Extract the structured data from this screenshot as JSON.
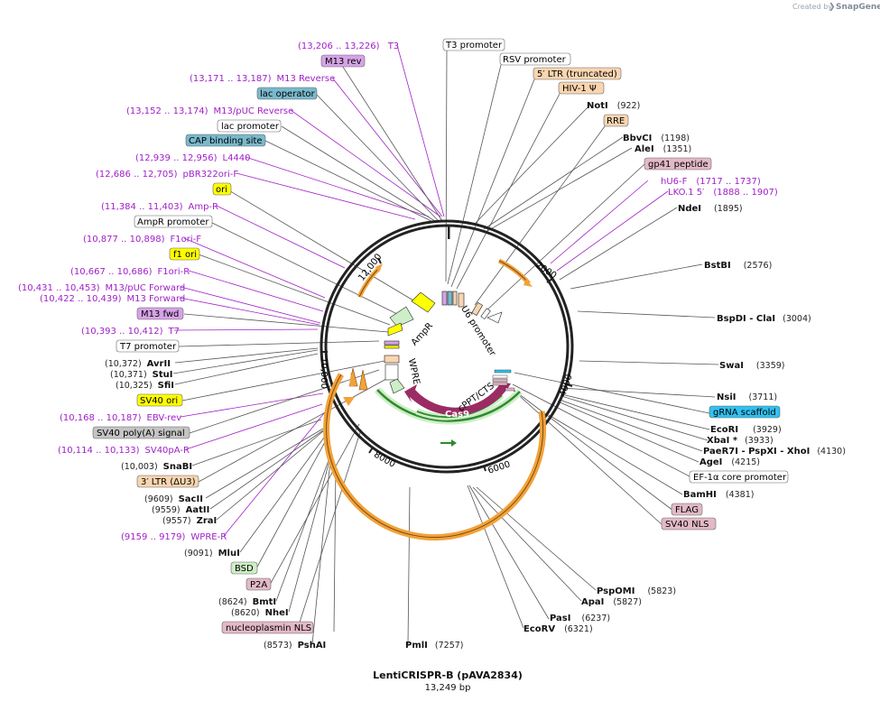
{
  "brand": {
    "created_by": "Created by",
    "name": "SnapGene"
  },
  "plasmid": {
    "name": "LentiCRISPR-B (pAVA2834)",
    "length": "13,249 bp"
  },
  "ticks": [
    "2000",
    "4000",
    "6000",
    "8000",
    "10,000",
    "12,000"
  ],
  "colors": {
    "ring": "#222222",
    "primer": "#a020c8",
    "cas9": "#9b2c63",
    "feature_orange": "#f2a23a",
    "feature_green": "#2e8b2e",
    "yellow": "#ffff00",
    "blue": "#79b9cc",
    "purple": "#d7a3e8",
    "peach": "#f9d5b0",
    "pink": "#e3b9c6",
    "grey": "#c4c4c4",
    "cyan": "#31c1f0",
    "lightgreen": "#cdeec6"
  },
  "arc_labels": {
    "u6": "U6 promoter",
    "ampr": "AmpR",
    "wpre": "WPRE",
    "cppt": "cPPT/CTS",
    "cas9": "Cas9"
  },
  "labels": {
    "t3_primer": {
      "text": "T3",
      "range": "(13,206 .. 13,226)"
    },
    "m13rev": {
      "text": "M13 rev"
    },
    "m13reverse": {
      "text": "M13 Reverse",
      "range": "(13,171 .. 13,187)"
    },
    "lacop": {
      "text": "lac operator"
    },
    "m13puc_rev": {
      "text": "M13/pUC Reverse",
      "range": "(13,152 .. 13,174)"
    },
    "lacprom": {
      "text": "lac promoter"
    },
    "cap": {
      "text": "CAP binding site"
    },
    "l4440": {
      "text": "L4440",
      "range": "(12,939 .. 12,956)"
    },
    "pbr": {
      "text": "pBR322ori-F",
      "range": "(12,686 .. 12,705)"
    },
    "ori": {
      "text": "ori"
    },
    "ampr_primer": {
      "text": "Amp-R",
      "range": "(11,384 .. 11,403)"
    },
    "ampr_prom": {
      "text": "AmpR promoter"
    },
    "f1ori_f": {
      "text": "F1ori-F",
      "range": "(10,877 .. 10,898)"
    },
    "f1ori": {
      "text": "f1 ori"
    },
    "f1ori_r": {
      "text": "F1ori-R",
      "range": "(10,667 .. 10,686)"
    },
    "m13puc_fwd": {
      "text": "M13/pUC Forward",
      "range": "(10,431 .. 10,453)"
    },
    "m13forward": {
      "text": "M13 Forward",
      "range": "(10,422 .. 10,439)"
    },
    "m13fwd": {
      "text": "M13 fwd"
    },
    "t7_primer": {
      "text": "T7",
      "range": "(10,393 .. 10,412)"
    },
    "t7prom": {
      "text": "T7 promoter"
    },
    "avrii": {
      "text": "AvrII",
      "pos": "(10,372)"
    },
    "stui": {
      "text": "StuI",
      "pos": "(10,371)"
    },
    "sfii": {
      "text": "SfiI",
      "pos": "(10,325)"
    },
    "sv40ori": {
      "text": "SV40 ori"
    },
    "ebvrev": {
      "text": "EBV-rev",
      "range": "(10,168 .. 10,187)"
    },
    "sv40pa": {
      "text": "SV40 poly(A) signal"
    },
    "sv40pa_r": {
      "text": "SV40pA-R",
      "range": "(10,114 .. 10,133)"
    },
    "snabi": {
      "text": "SnaBI",
      "pos": "(10,003)"
    },
    "ltr3": {
      "text": "3′ LTR (ΔU3)"
    },
    "sacii": {
      "text": "SacII",
      "pos": "(9609)"
    },
    "aatii": {
      "text": "AatII",
      "pos": "(9559)"
    },
    "zrai": {
      "text": "ZraI",
      "pos": "(9557)"
    },
    "wpre_r": {
      "text": "WPRE-R",
      "range": "(9159 .. 9179)"
    },
    "mlui": {
      "text": "MluI",
      "pos": "(9091)"
    },
    "bsd": {
      "text": "BSD"
    },
    "p2a": {
      "text": "P2A"
    },
    "bmti": {
      "text": "BmtI",
      "pos": "(8624)"
    },
    "nhei": {
      "text": "NheI",
      "pos": "(8620)"
    },
    "npnls": {
      "text": "nucleoplasmin NLS"
    },
    "pshai": {
      "text": "PshAI",
      "pos": "(8573)"
    },
    "pmli": {
      "text": "PmlI",
      "pos": "(7257)"
    },
    "t3prom": {
      "text": "T3 promoter"
    },
    "rsv": {
      "text": "RSV promoter"
    },
    "ltr5": {
      "text": "5′ LTR (truncated)"
    },
    "hiv": {
      "text": "HIV-1 Ψ"
    },
    "noti": {
      "text": "NotI",
      "pos": "(922)"
    },
    "rre": {
      "text": "RRE"
    },
    "bbvci": {
      "text": "BbvCI",
      "pos": "(1198)"
    },
    "alei": {
      "text": "AleI",
      "pos": "(1351)"
    },
    "gp41": {
      "text": "gp41 peptide"
    },
    "hu6": {
      "text": "hU6-F",
      "range": "(1717 .. 1737)"
    },
    "lko": {
      "text": "LKO.1 5′",
      "range": "(1888 .. 1907)"
    },
    "ndei": {
      "text": "NdeI",
      "pos": "(1895)"
    },
    "bstbi": {
      "text": "BstBI",
      "pos": "(2576)"
    },
    "bspdi": {
      "text": "BspDI - ClaI",
      "pos": "(3004)"
    },
    "swai": {
      "text": "SwaI",
      "pos": "(3359)"
    },
    "nsii": {
      "text": "NsiI",
      "pos": "(3711)"
    },
    "grna": {
      "text": "gRNA scaffold"
    },
    "ecori": {
      "text": "EcoRI",
      "pos": "(3929)"
    },
    "xbai": {
      "text": "XbaI *",
      "pos": "(3933)"
    },
    "paer7i": {
      "text": "PaeR7I - PspXI - XhoI",
      "pos": "(4130)"
    },
    "agei": {
      "text": "AgeI",
      "pos": "(4215)"
    },
    "ef1a": {
      "text": "EF-1α core promoter"
    },
    "bamhi": {
      "text": "BamHI",
      "pos": "(4381)"
    },
    "flag": {
      "text": "FLAG"
    },
    "sv40nls": {
      "text": "SV40 NLS"
    },
    "pspomi": {
      "text": "PspOMI",
      "pos": "(5823)"
    },
    "apai": {
      "text": "ApaI",
      "pos": "(5827)"
    },
    "pasi": {
      "text": "PasI",
      "pos": "(6237)"
    },
    "ecorv": {
      "text": "EcoRV",
      "pos": "(6321)"
    }
  }
}
